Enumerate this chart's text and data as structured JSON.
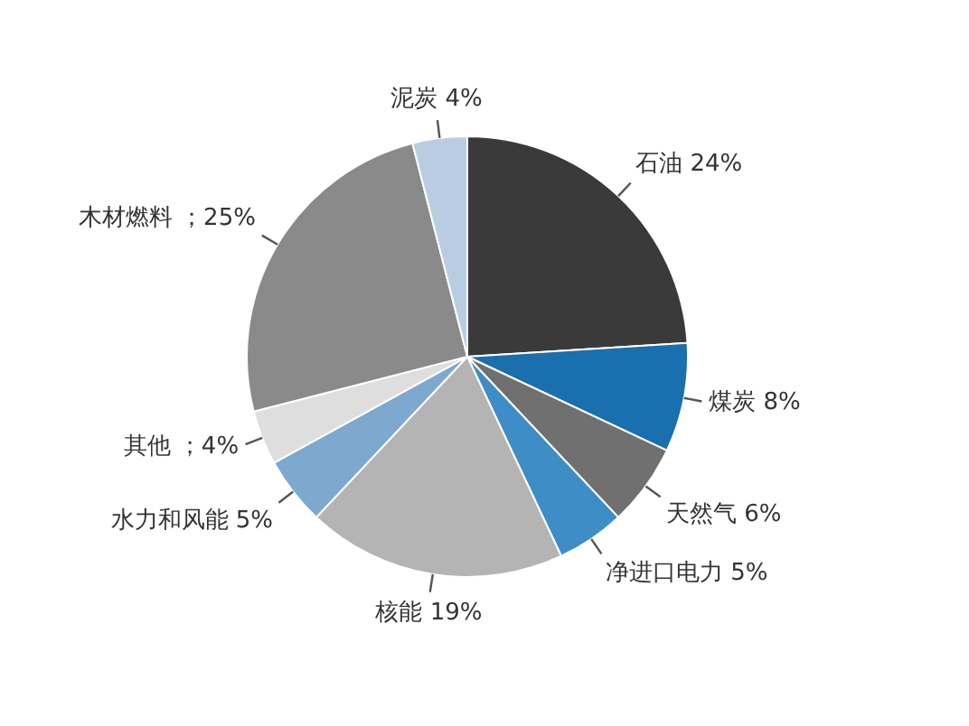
{
  "chart_data": {
    "type": "pie",
    "categories": [
      "石油",
      "煤炭",
      "天然气",
      "净进口电力",
      "核能",
      "水力和风能",
      "其他",
      "木材燃料",
      "泥炭"
    ],
    "values": [
      24,
      8,
      6,
      5,
      19,
      5,
      4,
      25,
      4
    ],
    "value_labels": [
      "24%",
      "8%",
      "6%",
      "5%",
      "19%",
      "5%",
      "；4%",
      "；25%",
      "4%"
    ],
    "colors": [
      "#3a3a3a",
      "#1a6fae",
      "#707070",
      "#3f8dc7",
      "#b4b4b4",
      "#7ea9cf",
      "#dedede",
      "#8a8a8a",
      "#b9cde2"
    ]
  }
}
